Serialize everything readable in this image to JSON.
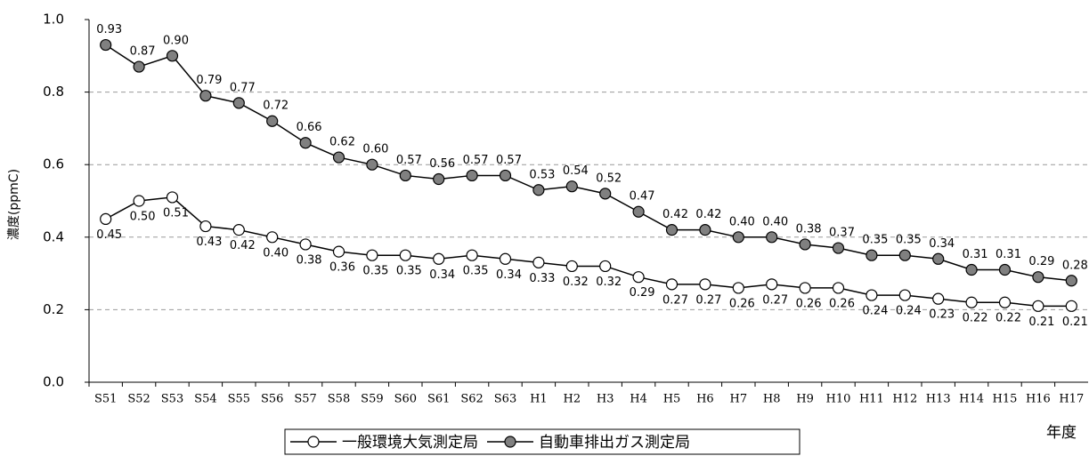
{
  "chart_data": {
    "type": "line",
    "y_label": "濃度(ppmC)",
    "x_label": "年度",
    "categories": [
      "S51",
      "S52",
      "S53",
      "S54",
      "S55",
      "S56",
      "S57",
      "S58",
      "S59",
      "S60",
      "S61",
      "S62",
      "S63",
      "H1",
      "H2",
      "H3",
      "H4",
      "H5",
      "H6",
      "H7",
      "H8",
      "H9",
      "H10",
      "H11",
      "H12",
      "H13",
      "H14",
      "H15",
      "H16",
      "H17"
    ],
    "series": [
      {
        "name": "一般環境大気測定局",
        "color": "#ffffff",
        "values": [
          0.45,
          0.5,
          0.51,
          0.43,
          0.42,
          0.4,
          0.38,
          0.36,
          0.35,
          0.35,
          0.34,
          0.35,
          0.34,
          0.33,
          0.32,
          0.32,
          0.29,
          0.27,
          0.27,
          0.26,
          0.27,
          0.26,
          0.26,
          0.24,
          0.24,
          0.23,
          0.22,
          0.22,
          0.21,
          0.21
        ],
        "value_labels": [
          "0.45",
          "0.50",
          "0.51",
          "0.43",
          "0.42",
          "0.40",
          "0.38",
          "0.36",
          "0.35",
          "0.35",
          "0.34",
          "0.35",
          "0.34",
          "0.33",
          "0.32",
          "0.32",
          "0.29",
          "0.27",
          "0.27",
          "0.26",
          "0.27",
          "0.26",
          "0.26",
          "0.24",
          "0.24",
          "0.23",
          "0.22",
          "0.22",
          "0.21",
          "0.21"
        ]
      },
      {
        "name": "自動車排出ガス測定局",
        "color": "#808080",
        "values": [
          0.93,
          0.87,
          0.9,
          0.79,
          0.77,
          0.72,
          0.66,
          0.62,
          0.6,
          0.57,
          0.56,
          0.57,
          0.57,
          0.53,
          0.54,
          0.52,
          0.47,
          0.42,
          0.42,
          0.4,
          0.4,
          0.38,
          0.37,
          0.35,
          0.35,
          0.34,
          0.31,
          0.31,
          0.29,
          0.28
        ],
        "value_labels": [
          "0.93",
          "0.87",
          "0.90",
          "0.79",
          "0.77",
          "0.72",
          "0.66",
          "0.62",
          "0.60",
          "0.57",
          "0.56",
          "0.57",
          "0.57",
          "0.53",
          "0.54",
          "0.52",
          "0.47",
          "0.42",
          "0.42",
          "0.40",
          "0.40",
          "0.38",
          "0.37",
          "0.35",
          "0.35",
          "0.34",
          "0.31",
          "0.31",
          "0.29",
          "0.28"
        ]
      }
    ],
    "ylim": [
      0,
      1
    ],
    "yticks": [
      {
        "value": 0,
        "label": "0.0"
      },
      {
        "value": 0.2,
        "label": "0.2"
      },
      {
        "value": 0.4,
        "label": "0.4"
      },
      {
        "value": 0.6,
        "label": "0.6"
      },
      {
        "value": 0.8,
        "label": "0.8"
      },
      {
        "value": 1,
        "label": "1.0"
      }
    ],
    "grid": true
  }
}
